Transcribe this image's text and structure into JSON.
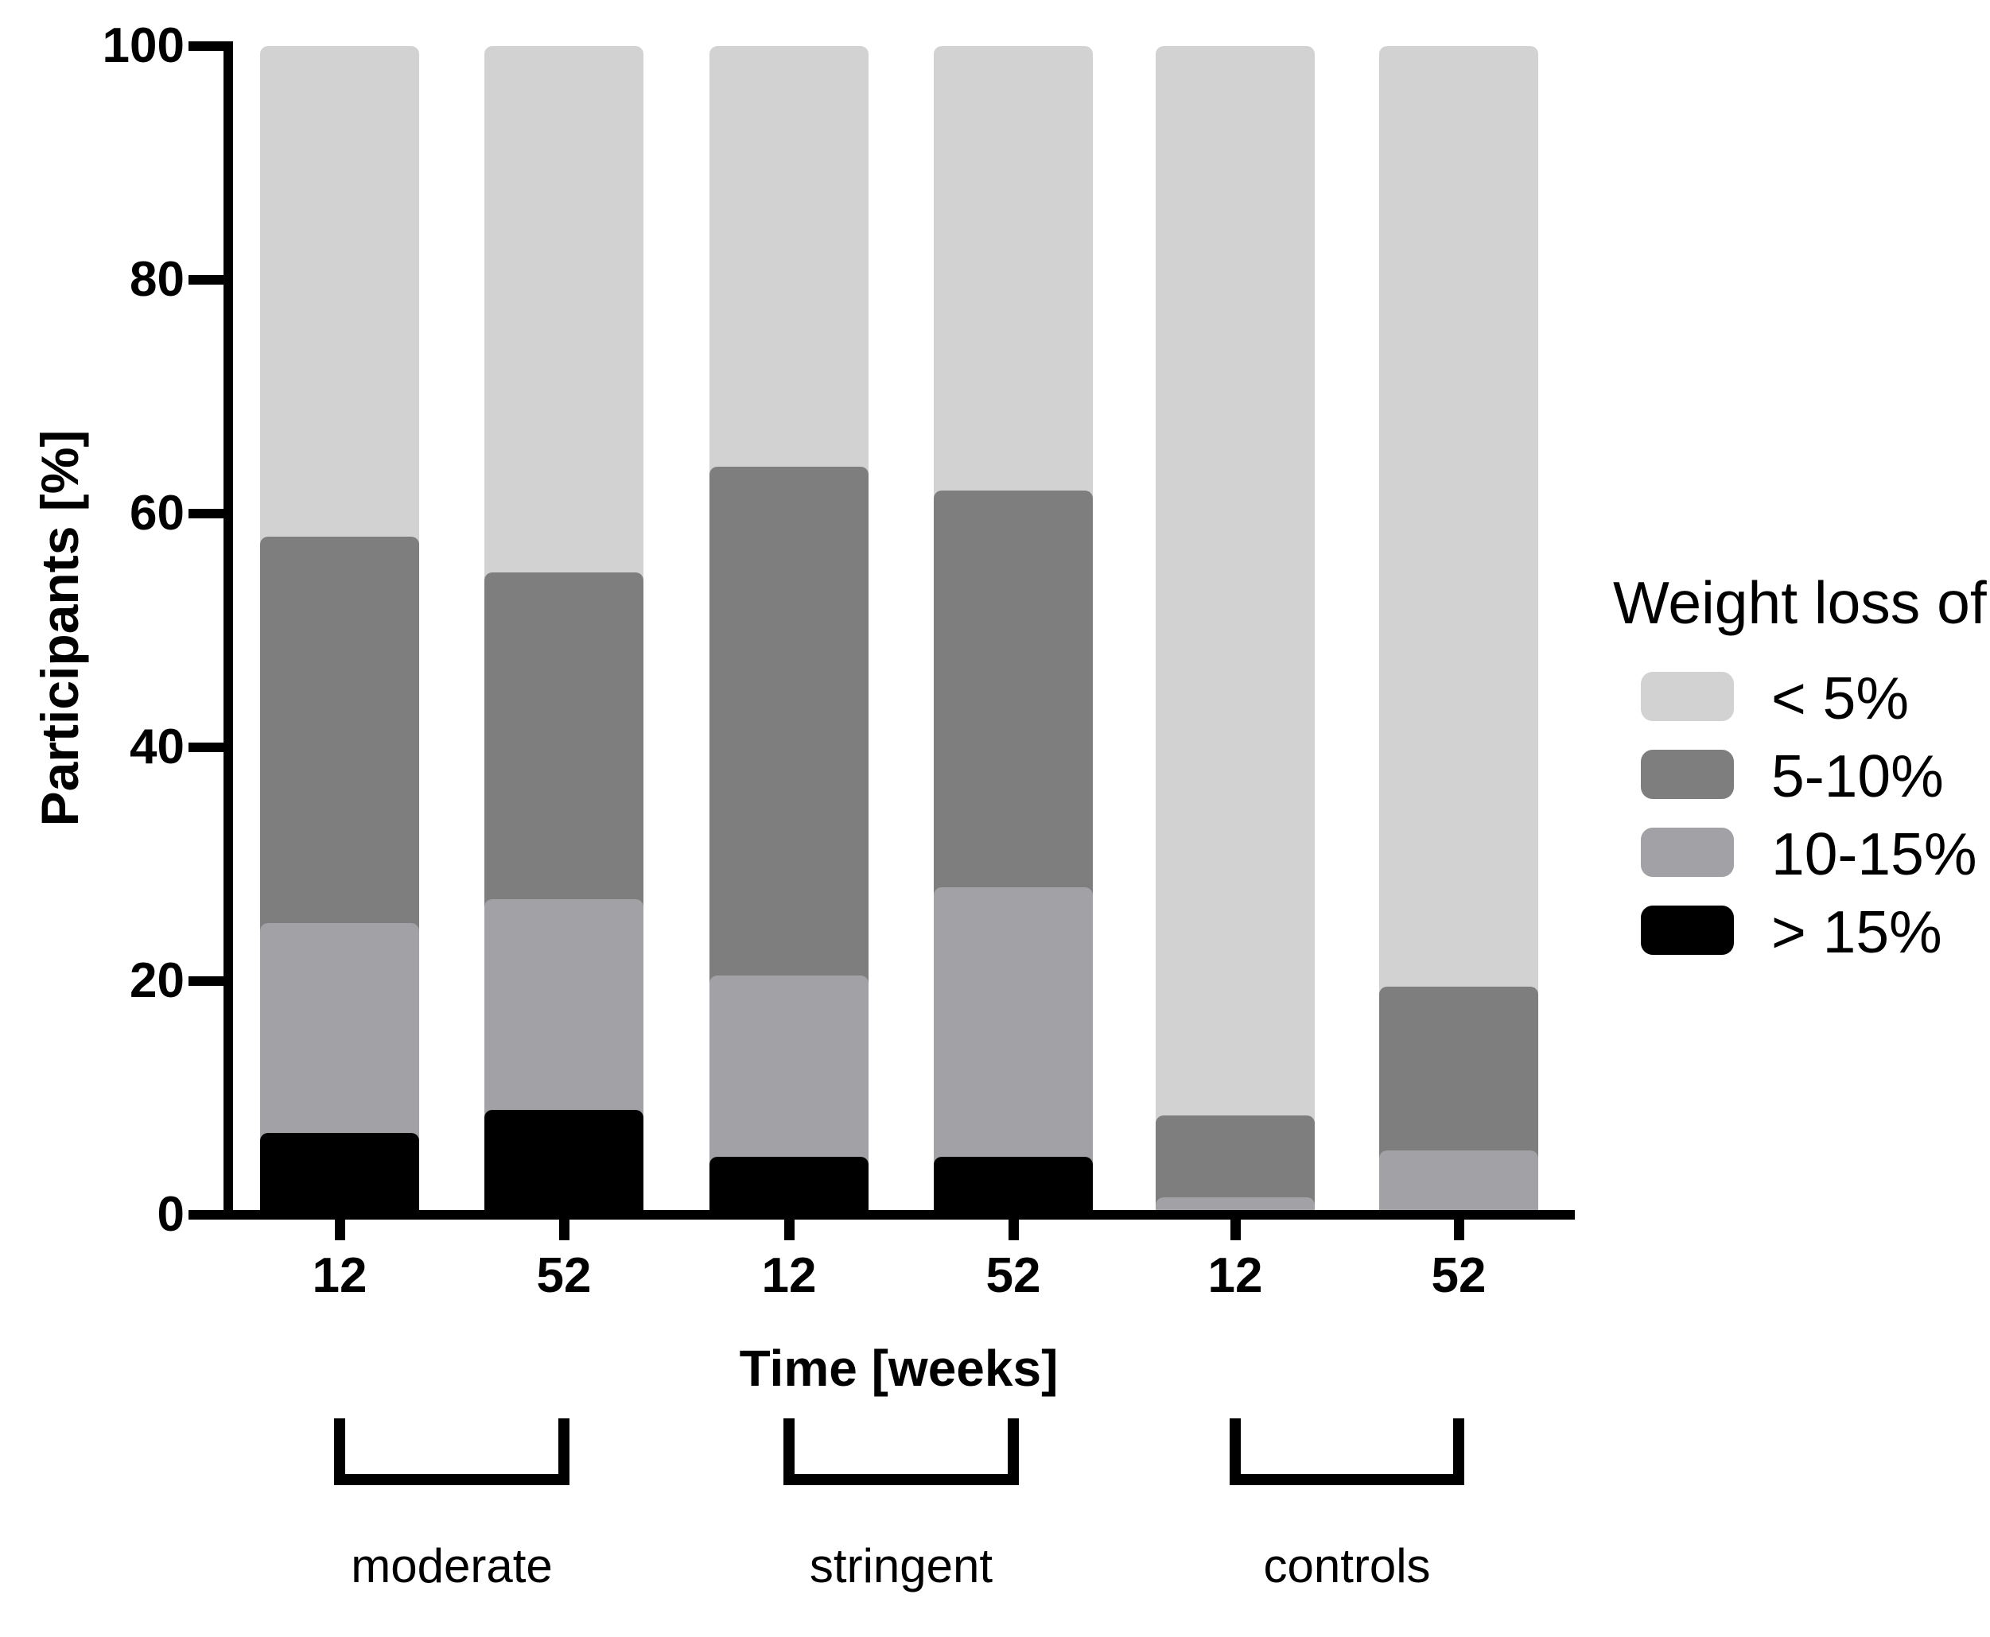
{
  "figure": {
    "background": "#ffffff",
    "axis_color": "#000000",
    "text_color": "#000000"
  },
  "chart_data": {
    "type": "bar",
    "stacked": true,
    "title": "",
    "ylabel": "Participants [%]",
    "xlabel": "Time [weeks]",
    "ylim": [
      0,
      100
    ],
    "yticks": [
      "0",
      "20",
      "40",
      "60",
      "80",
      "100"
    ],
    "ytick_values": [
      0,
      20,
      40,
      60,
      80,
      100
    ],
    "grid": false,
    "groups": [
      {
        "label": "moderate",
        "categories": [
          "12",
          "52"
        ]
      },
      {
        "label": "stringent",
        "categories": [
          "12",
          "52"
        ]
      },
      {
        "label": "controls",
        "categories": [
          "12",
          "52"
        ]
      }
    ],
    "categories": [
      "12",
      "52",
      "12",
      "52",
      "12",
      "52"
    ],
    "stack_order": "bottom-to-top",
    "series": [
      {
        "name": "> 15%",
        "color": "#000000",
        "values": [
          7,
          9,
          5,
          5,
          0,
          0
        ]
      },
      {
        "name": "10-15%",
        "color": "#a1a1a6",
        "values": [
          18,
          18,
          15.5,
          23,
          1.5,
          5.5
        ]
      },
      {
        "name": "5-10%",
        "color": "#7e7e7e",
        "values": [
          33,
          28,
          43.5,
          34,
          7,
          14
        ]
      },
      {
        "name": "< 5%",
        "color": "#d2d2d2",
        "values": [
          42,
          45,
          36,
          38,
          91.5,
          80.5
        ]
      }
    ],
    "legend": {
      "title": "Weight loss of",
      "position": "right",
      "entries": [
        {
          "label": "< 5%",
          "color": "#d2d2d2"
        },
        {
          "label": "5-10%",
          "color": "#7e7e7e"
        },
        {
          "label": "10-15%",
          "color": "#a1a1a6"
        },
        {
          "label": "> 15%",
          "color": "#000000"
        }
      ]
    }
  }
}
